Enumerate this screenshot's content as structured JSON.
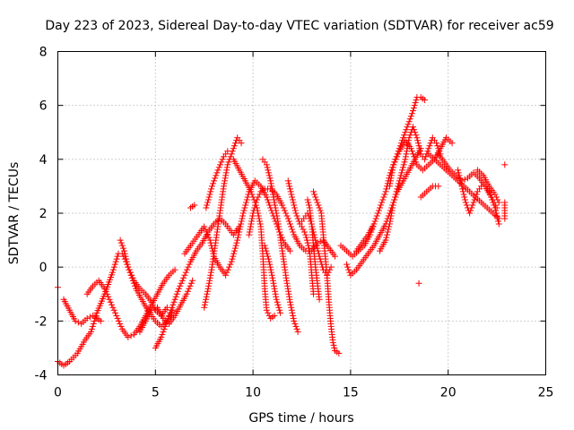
{
  "chart_data": {
    "type": "scatter",
    "title": "Day 223 of 2023, Sidereal Day-to-day VTEC variation (SDTVAR) for receiver ac59",
    "xlabel": "GPS time / hours",
    "ylabel": "SDTVAR / TECUs",
    "xlim": [
      0,
      25
    ],
    "ylim": [
      -4,
      8
    ],
    "xticks": [
      0,
      5,
      10,
      15,
      20,
      25
    ],
    "yticks": [
      -4,
      -2,
      0,
      2,
      4,
      6,
      8
    ],
    "grid": true,
    "marker": "+",
    "color": "#ff0000",
    "traces": [
      [
        [
          0.0,
          -3.5
        ],
        [
          0.3,
          -3.65
        ],
        [
          0.6,
          -3.5
        ],
        [
          1.0,
          -3.2
        ],
        [
          1.4,
          -2.7
        ],
        [
          1.7,
          -2.4
        ],
        [
          2.0,
          -1.7
        ],
        [
          2.4,
          -1.0
        ],
        [
          2.8,
          -0.2
        ],
        [
          3.1,
          0.5
        ],
        [
          3.3,
          0.5
        ],
        [
          3.5,
          0.2
        ],
        [
          3.8,
          -0.4
        ],
        [
          4.0,
          -0.8
        ],
        [
          4.3,
          -1.2
        ],
        [
          4.6,
          -1.6
        ],
        [
          5.0,
          -2.0
        ],
        [
          5.3,
          -2.2
        ],
        [
          5.6,
          -2.0
        ],
        [
          5.9,
          -1.6
        ]
      ],
      [
        [
          0.3,
          -1.2
        ],
        [
          0.6,
          -1.6
        ],
        [
          0.9,
          -2.0
        ],
        [
          1.2,
          -2.1
        ],
        [
          1.5,
          -1.9
        ],
        [
          1.8,
          -1.8
        ],
        [
          2.0,
          -1.9
        ],
        [
          2.2,
          -2.0
        ]
      ],
      [
        [
          1.5,
          -1.0
        ],
        [
          1.8,
          -0.7
        ],
        [
          2.1,
          -0.5
        ],
        [
          2.4,
          -0.8
        ],
        [
          2.7,
          -1.3
        ],
        [
          3.0,
          -1.8
        ],
        [
          3.3,
          -2.3
        ],
        [
          3.6,
          -2.6
        ],
        [
          3.9,
          -2.5
        ],
        [
          4.2,
          -2.2
        ],
        [
          4.5,
          -1.8
        ],
        [
          4.8,
          -1.4
        ],
        [
          5.1,
          -1.0
        ],
        [
          5.4,
          -0.6
        ],
        [
          5.7,
          -0.3
        ],
        [
          6.0,
          -0.1
        ]
      ],
      [
        [
          3.2,
          1.0
        ],
        [
          3.4,
          0.6
        ],
        [
          3.6,
          0.0
        ],
        [
          3.9,
          -0.5
        ],
        [
          4.2,
          -0.8
        ],
        [
          4.5,
          -1.0
        ],
        [
          4.8,
          -1.3
        ],
        [
          5.0,
          -1.6
        ],
        [
          5.3,
          -1.8
        ],
        [
          5.6,
          -1.5
        ]
      ],
      [
        [
          4.2,
          -2.4
        ],
        [
          4.5,
          -2.0
        ],
        [
          4.8,
          -1.6
        ],
        [
          5.1,
          -1.5
        ],
        [
          5.4,
          -1.9
        ],
        [
          5.7,
          -2.1
        ],
        [
          6.0,
          -1.8
        ],
        [
          6.3,
          -1.4
        ],
        [
          6.6,
          -1.0
        ],
        [
          6.9,
          -0.5
        ]
      ],
      [
        [
          5.0,
          -3.0
        ],
        [
          5.3,
          -2.6
        ],
        [
          5.6,
          -2.0
        ],
        [
          5.9,
          -1.4
        ],
        [
          6.2,
          -0.8
        ],
        [
          6.5,
          -0.3
        ],
        [
          6.8,
          0.2
        ],
        [
          7.1,
          0.6
        ],
        [
          7.4,
          0.9
        ],
        [
          7.7,
          1.3
        ],
        [
          8.0,
          1.6
        ],
        [
          8.3,
          1.8
        ],
        [
          8.6,
          1.6
        ],
        [
          9.0,
          1.2
        ],
        [
          9.3,
          1.5
        ]
      ],
      [
        [
          6.5,
          0.5
        ],
        [
          6.8,
          0.8
        ],
        [
          7.2,
          1.2
        ],
        [
          7.5,
          1.5
        ],
        [
          7.8,
          1.0
        ],
        [
          8.0,
          0.4
        ],
        [
          8.3,
          0.0
        ],
        [
          8.6,
          -0.3
        ],
        [
          8.9,
          0.2
        ],
        [
          9.2,
          1.0
        ],
        [
          9.5,
          2.0
        ],
        [
          9.8,
          2.8
        ],
        [
          10.1,
          3.2
        ],
        [
          10.4,
          3.0
        ],
        [
          10.7,
          2.6
        ],
        [
          11.0,
          2.0
        ],
        [
          11.3,
          1.4
        ],
        [
          11.6,
          0.9
        ],
        [
          11.9,
          0.6
        ]
      ],
      [
        [
          7.5,
          -1.5
        ],
        [
          7.7,
          -0.8
        ],
        [
          7.9,
          0.0
        ],
        [
          8.1,
          1.0
        ],
        [
          8.3,
          2.0
        ],
        [
          8.5,
          3.0
        ],
        [
          8.7,
          3.8
        ],
        [
          9.0,
          4.4
        ],
        [
          9.2,
          4.8
        ],
        [
          9.4,
          4.6
        ]
      ],
      [
        [
          7.6,
          2.2
        ],
        [
          7.9,
          3.0
        ],
        [
          8.2,
          3.6
        ],
        [
          8.5,
          4.1
        ],
        [
          8.7,
          4.3
        ]
      ],
      [
        [
          9.0,
          4.0
        ],
        [
          9.3,
          3.6
        ],
        [
          9.6,
          3.2
        ],
        [
          9.9,
          2.8
        ],
        [
          10.2,
          2.2
        ],
        [
          10.4,
          1.5
        ],
        [
          10.5,
          0.5
        ],
        [
          10.6,
          -0.8
        ],
        [
          10.7,
          -1.6
        ],
        [
          10.9,
          -1.9
        ],
        [
          11.1,
          -1.8
        ]
      ],
      [
        [
          9.8,
          1.2
        ],
        [
          10.0,
          2.0
        ],
        [
          10.2,
          2.5
        ],
        [
          10.4,
          2.8
        ],
        [
          10.6,
          2.9
        ],
        [
          10.9,
          2.9
        ],
        [
          11.2,
          2.7
        ],
        [
          11.5,
          2.3
        ],
        [
          11.8,
          1.8
        ],
        [
          12.1,
          1.2
        ],
        [
          12.4,
          0.8
        ],
        [
          12.7,
          0.6
        ],
        [
          13.0,
          0.6
        ],
        [
          13.3,
          0.9
        ],
        [
          13.6,
          1.0
        ],
        [
          13.9,
          0.7
        ],
        [
          14.2,
          0.4
        ]
      ],
      [
        [
          10.5,
          4.0
        ],
        [
          10.7,
          3.8
        ],
        [
          10.9,
          3.2
        ],
        [
          11.1,
          2.4
        ],
        [
          11.3,
          1.6
        ],
        [
          11.5,
          0.6
        ],
        [
          11.7,
          -0.4
        ],
        [
          11.9,
          -1.3
        ],
        [
          12.1,
          -2.0
        ],
        [
          12.3,
          -2.4
        ]
      ],
      [
        [
          10.6,
          0.8
        ],
        [
          10.8,
          0.3
        ],
        [
          11.0,
          -0.4
        ],
        [
          11.2,
          -1.2
        ],
        [
          11.4,
          -1.7
        ]
      ],
      [
        [
          11.8,
          3.2
        ],
        [
          12.0,
          2.6
        ],
        [
          12.2,
          2.0
        ],
        [
          12.4,
          1.6
        ],
        [
          12.6,
          1.8
        ],
        [
          12.8,
          2.0
        ],
        [
          13.0,
          1.6
        ],
        [
          13.2,
          1.0
        ],
        [
          13.4,
          0.4
        ],
        [
          13.6,
          -0.1
        ],
        [
          13.8,
          -0.3
        ],
        [
          14.0,
          0.0
        ]
      ],
      [
        [
          12.5,
          1.5
        ],
        [
          12.7,
          1.2
        ],
        [
          12.9,
          0.6
        ],
        [
          13.0,
          -0.2
        ],
        [
          13.1,
          -1.0
        ]
      ],
      [
        [
          12.8,
          2.5
        ],
        [
          12.9,
          2.2
        ],
        [
          13.0,
          1.6
        ],
        [
          13.1,
          0.8
        ],
        [
          13.2,
          0.0
        ],
        [
          13.3,
          -0.6
        ],
        [
          13.4,
          -1.2
        ]
      ],
      [
        [
          13.1,
          2.8
        ],
        [
          13.3,
          2.4
        ],
        [
          13.5,
          2.0
        ],
        [
          13.6,
          1.2
        ],
        [
          13.7,
          0.4
        ],
        [
          13.8,
          -0.4
        ],
        [
          13.9,
          -1.4
        ],
        [
          14.0,
          -2.2
        ],
        [
          14.1,
          -2.8
        ],
        [
          14.2,
          -3.1
        ],
        [
          14.4,
          -3.2
        ]
      ],
      [
        [
          14.5,
          0.8
        ],
        [
          14.8,
          0.6
        ],
        [
          15.1,
          0.4
        ],
        [
          15.4,
          0.6
        ],
        [
          15.7,
          0.8
        ],
        [
          16.0,
          1.2
        ],
        [
          16.2,
          1.6
        ]
      ],
      [
        [
          14.8,
          0.1
        ],
        [
          15.0,
          -0.3
        ],
        [
          15.3,
          -0.1
        ],
        [
          15.6,
          0.2
        ],
        [
          15.9,
          0.5
        ],
        [
          16.2,
          0.8
        ],
        [
          16.5,
          1.2
        ],
        [
          16.8,
          1.6
        ],
        [
          17.1,
          2.2
        ],
        [
          17.4,
          2.8
        ],
        [
          17.7,
          3.2
        ],
        [
          18.0,
          3.6
        ],
        [
          18.3,
          4.0
        ],
        [
          18.6,
          4.4
        ]
      ],
      [
        [
          15.3,
          0.6
        ],
        [
          15.6,
          0.9
        ],
        [
          15.9,
          1.2
        ],
        [
          16.2,
          1.6
        ],
        [
          16.5,
          2.2
        ],
        [
          16.8,
          2.8
        ],
        [
          17.0,
          3.4
        ],
        [
          17.3,
          4.0
        ],
        [
          17.6,
          4.6
        ],
        [
          17.9,
          5.2
        ],
        [
          18.2,
          5.8
        ],
        [
          18.4,
          6.3
        ],
        [
          18.6,
          6.3
        ],
        [
          18.8,
          6.2
        ]
      ],
      [
        [
          16.5,
          0.6
        ],
        [
          16.8,
          1.0
        ],
        [
          17.0,
          1.6
        ],
        [
          17.2,
          2.4
        ],
        [
          17.5,
          3.2
        ],
        [
          17.8,
          4.0
        ],
        [
          18.0,
          4.8
        ],
        [
          18.2,
          5.2
        ],
        [
          18.4,
          4.8
        ],
        [
          18.6,
          4.2
        ],
        [
          18.8,
          4.0
        ],
        [
          19.0,
          4.4
        ],
        [
          19.2,
          4.8
        ],
        [
          19.4,
          4.6
        ],
        [
          19.6,
          4.2
        ]
      ],
      [
        [
          17.0,
          3.0
        ],
        [
          17.2,
          3.8
        ],
        [
          17.5,
          4.3
        ],
        [
          17.8,
          4.7
        ],
        [
          18.1,
          4.4
        ],
        [
          18.4,
          3.8
        ],
        [
          18.7,
          3.6
        ],
        [
          19.0,
          3.8
        ],
        [
          19.3,
          4.0
        ],
        [
          19.6,
          4.4
        ],
        [
          19.9,
          4.8
        ],
        [
          20.2,
          4.6
        ]
      ],
      [
        [
          18.6,
          2.6
        ],
        [
          18.9,
          2.8
        ],
        [
          19.2,
          3.0
        ],
        [
          19.5,
          3.0
        ]
      ],
      [
        [
          18.5,
          -0.6
        ]
      ],
      [
        [
          19.0,
          4.2
        ],
        [
          19.3,
          4.0
        ],
        [
          19.6,
          3.8
        ],
        [
          19.9,
          3.6
        ],
        [
          20.2,
          3.4
        ],
        [
          20.5,
          3.2
        ],
        [
          20.8,
          3.0
        ],
        [
          21.1,
          2.8
        ],
        [
          21.4,
          2.6
        ],
        [
          21.7,
          2.4
        ],
        [
          22.0,
          2.2
        ],
        [
          22.3,
          2.0
        ],
        [
          22.6,
          1.8
        ]
      ],
      [
        [
          19.5,
          4.2
        ],
        [
          19.8,
          3.9
        ],
        [
          20.1,
          3.6
        ],
        [
          20.4,
          3.4
        ],
        [
          20.7,
          3.2
        ],
        [
          21.0,
          3.3
        ],
        [
          21.3,
          3.5
        ],
        [
          21.6,
          3.3
        ],
        [
          21.9,
          3.0
        ],
        [
          22.2,
          2.6
        ],
        [
          22.4,
          2.2
        ],
        [
          22.6,
          1.6
        ]
      ],
      [
        [
          20.5,
          3.6
        ],
        [
          20.7,
          3.0
        ],
        [
          20.9,
          2.4
        ],
        [
          21.1,
          2.0
        ],
        [
          21.3,
          2.4
        ],
        [
          21.5,
          2.8
        ],
        [
          21.7,
          3.0
        ],
        [
          21.9,
          3.0
        ],
        [
          22.1,
          2.8
        ],
        [
          22.3,
          2.5
        ],
        [
          22.5,
          2.2
        ]
      ],
      [
        [
          21.5,
          3.6
        ],
        [
          21.8,
          3.4
        ],
        [
          22.1,
          3.0
        ],
        [
          22.4,
          2.7
        ],
        [
          22.6,
          2.4
        ]
      ],
      [
        [
          22.9,
          3.8
        ]
      ],
      [
        [
          22.9,
          2.4
        ],
        [
          22.9,
          1.8
        ]
      ],
      [
        [
          0.0,
          -0.75
        ]
      ],
      [
        [
          6.8,
          2.2
        ],
        [
          7.0,
          2.3
        ]
      ]
    ]
  }
}
